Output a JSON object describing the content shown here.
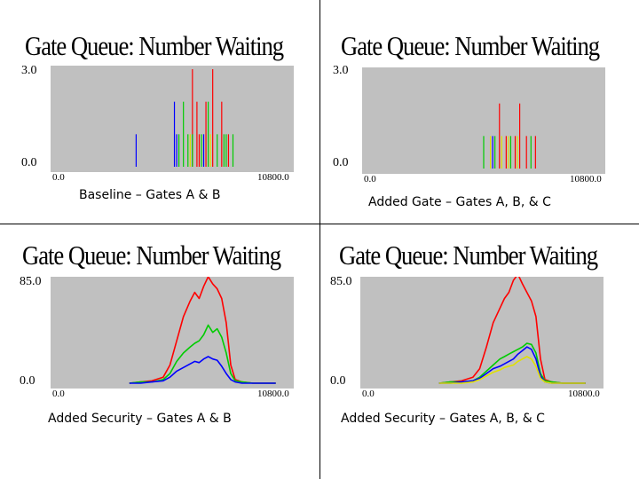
{
  "chart_data": [
    {
      "type": "line",
      "title": "Gate Queue: Number Waiting",
      "caption": "Baseline – Gates A & B",
      "ytick_top": "3.0",
      "ytick_bottom": "0.0",
      "xtick_left": "0.0",
      "xtick_right": "10800.0",
      "xlim": [
        0,
        10800
      ],
      "ylim": [
        0,
        3
      ],
      "style": "spikes",
      "series": [
        {
          "color": "#ff0000",
          "x": [
            6300,
            6500,
            6600,
            6900,
            7200,
            7600,
            7900
          ],
          "y": [
            3,
            2,
            1,
            2,
            3,
            2,
            1
          ]
        },
        {
          "color": "#00cc00",
          "x": [
            5700,
            5900,
            6100,
            6300,
            6700,
            7000,
            7400,
            7700,
            7800,
            8100
          ],
          "y": [
            1,
            2,
            1,
            1,
            1,
            2,
            1,
            1,
            1,
            1
          ]
        },
        {
          "color": "#0000ff",
          "x": [
            3800,
            5500,
            5600,
            6800
          ],
          "y": [
            1,
            2,
            1,
            1
          ]
        },
        {
          "color": "#e0e000",
          "x": [
            6200,
            7100
          ],
          "y": [
            1,
            1
          ]
        }
      ]
    },
    {
      "type": "line",
      "title": "Gate Queue: Number Waiting",
      "caption": "Added Gate – Gates A, B, & C",
      "ytick_top": "3.0",
      "ytick_bottom": "0.0",
      "xtick_left": "0.0",
      "xtick_right": "10800.0",
      "xlim": [
        0,
        10800
      ],
      "ylim": [
        0,
        3
      ],
      "style": "spikes",
      "series": [
        {
          "color": "#ff0000",
          "x": [
            6100,
            6400,
            6800,
            7000,
            7300,
            7700
          ],
          "y": [
            2,
            1,
            1,
            2,
            1,
            1
          ]
        },
        {
          "color": "#00cc00",
          "x": [
            5400,
            5900,
            6600,
            7500
          ],
          "y": [
            1,
            1,
            1,
            1
          ]
        },
        {
          "color": "#e0e000",
          "x": [
            5700,
            6200,
            6500,
            6900
          ],
          "y": [
            1,
            1,
            1,
            1
          ]
        },
        {
          "color": "#0000ff",
          "x": [
            5800
          ],
          "y": [
            1
          ]
        }
      ]
    },
    {
      "type": "line",
      "title": "Gate Queue: Number Waiting",
      "caption": "Added Security – Gates A & B",
      "ytick_top": "85.0",
      "ytick_bottom": "0.0",
      "xtick_left": "0.0",
      "xtick_right": "10800.0",
      "xlim": [
        0,
        10800
      ],
      "ylim": [
        0,
        85
      ],
      "style": "line",
      "series": [
        {
          "color": "#ff0000",
          "x": [
            3500,
            4000,
            4500,
            5000,
            5300,
            5600,
            5900,
            6200,
            6400,
            6600,
            6800,
            7000,
            7200,
            7400,
            7600,
            7800,
            8000,
            8200,
            8500,
            9000,
            10000
          ],
          "y": [
            0,
            1,
            2,
            5,
            15,
            35,
            55,
            68,
            75,
            70,
            80,
            88,
            82,
            78,
            70,
            50,
            15,
            3,
            1,
            0,
            0
          ]
        },
        {
          "color": "#00cc00",
          "x": [
            3500,
            4000,
            4500,
            5000,
            5300,
            5600,
            5900,
            6200,
            6400,
            6600,
            6800,
            7000,
            7200,
            7400,
            7600,
            7800,
            8000,
            8200,
            8500,
            9000,
            10000
          ],
          "y": [
            0,
            1,
            1,
            3,
            8,
            18,
            25,
            30,
            33,
            35,
            40,
            48,
            42,
            45,
            38,
            25,
            8,
            2,
            1,
            0,
            0
          ]
        },
        {
          "color": "#0000ff",
          "x": [
            3500,
            4000,
            4500,
            5000,
            5300,
            5600,
            5900,
            6200,
            6400,
            6600,
            6800,
            7000,
            7200,
            7400,
            7600,
            7800,
            8000,
            8200,
            8500,
            9000,
            10000
          ],
          "y": [
            0,
            0,
            1,
            2,
            5,
            10,
            13,
            16,
            18,
            17,
            20,
            22,
            20,
            19,
            14,
            8,
            3,
            1,
            0,
            0,
            0
          ]
        }
      ]
    },
    {
      "type": "line",
      "title": "Gate Queue: Number Waiting",
      "caption": "Added Security – Gates A, B, & C",
      "ytick_top": "85.0",
      "ytick_bottom": "0.0",
      "xtick_left": "0.0",
      "xtick_right": "10800.0",
      "xlim": [
        0,
        10800
      ],
      "ylim": [
        0,
        85
      ],
      "style": "line",
      "series": [
        {
          "color": "#ff0000",
          "x": [
            3500,
            4000,
            4500,
            5000,
            5300,
            5600,
            5900,
            6200,
            6400,
            6600,
            6800,
            7000,
            7200,
            7400,
            7600,
            7800,
            8000,
            8200,
            8500,
            9000,
            10000
          ],
          "y": [
            0,
            1,
            2,
            5,
            12,
            30,
            50,
            62,
            70,
            75,
            85,
            90,
            82,
            75,
            68,
            55,
            20,
            3,
            1,
            0,
            0
          ]
        },
        {
          "color": "#00cc00",
          "x": [
            3500,
            4000,
            4500,
            5000,
            5300,
            5600,
            5900,
            6200,
            6400,
            6600,
            6800,
            7000,
            7200,
            7400,
            7600,
            7800,
            8000,
            8200,
            8500,
            9000,
            10000
          ],
          "y": [
            0,
            1,
            1,
            2,
            5,
            10,
            15,
            20,
            22,
            24,
            26,
            28,
            30,
            33,
            32,
            25,
            8,
            2,
            1,
            0,
            0
          ]
        },
        {
          "color": "#0000ff",
          "x": [
            3500,
            4000,
            4500,
            5000,
            5300,
            5600,
            5900,
            6200,
            6400,
            6600,
            6800,
            7000,
            7200,
            7400,
            7600,
            7800,
            8000,
            8200,
            8500,
            9000,
            10000
          ],
          "y": [
            0,
            0,
            1,
            2,
            4,
            8,
            12,
            14,
            16,
            18,
            20,
            24,
            27,
            30,
            28,
            20,
            6,
            1,
            0,
            0,
            0
          ]
        },
        {
          "color": "#e0e000",
          "x": [
            3500,
            4000,
            4500,
            5000,
            5300,
            5600,
            5900,
            6200,
            6400,
            6600,
            6800,
            7000,
            7200,
            7400,
            7600,
            7800,
            8000,
            8200,
            8500,
            9000,
            10000
          ],
          "y": [
            0,
            0,
            0,
            1,
            3,
            6,
            9,
            11,
            13,
            14,
            15,
            18,
            20,
            22,
            20,
            14,
            4,
            1,
            0,
            0,
            0
          ]
        }
      ]
    }
  ]
}
